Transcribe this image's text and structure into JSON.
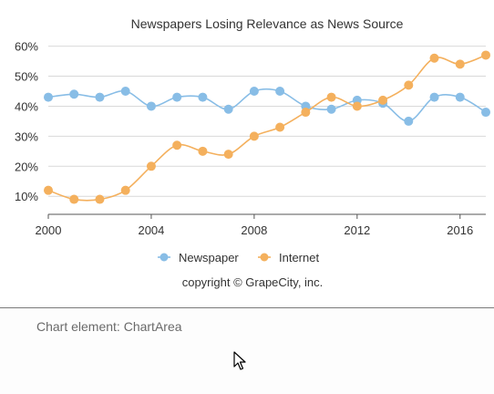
{
  "chart_data": {
    "type": "line",
    "title": "Newspapers Losing Relevance as News Source",
    "x": [
      2000,
      2001,
      2002,
      2003,
      2004,
      2005,
      2006,
      2007,
      2008,
      2009,
      2010,
      2011,
      2012,
      2013,
      2014,
      2015,
      2016,
      2017
    ],
    "xticks": [
      "2000",
      "2004",
      "2008",
      "2012",
      "2016"
    ],
    "ylim": [
      4,
      62
    ],
    "yticks": [
      "10%",
      "20%",
      "30%",
      "40%",
      "50%",
      "60%"
    ],
    "grid": true,
    "legend_position": "bottom",
    "series": [
      {
        "name": "Newspaper",
        "color": "#88bde6",
        "values": [
          43,
          44,
          43,
          45,
          40,
          43,
          43,
          39,
          45,
          45,
          40,
          39,
          42,
          41,
          35,
          43,
          43,
          38
        ]
      },
      {
        "name": "Internet",
        "color": "#f4b05d",
        "values": [
          12,
          9,
          9,
          12,
          20,
          27,
          25,
          24,
          30,
          33,
          38,
          43,
          40,
          42,
          47,
          56,
          54,
          57
        ]
      }
    ],
    "footnote": "copyright © GrapeCity, inc."
  },
  "status": {
    "text": "Chart element: ChartArea"
  }
}
